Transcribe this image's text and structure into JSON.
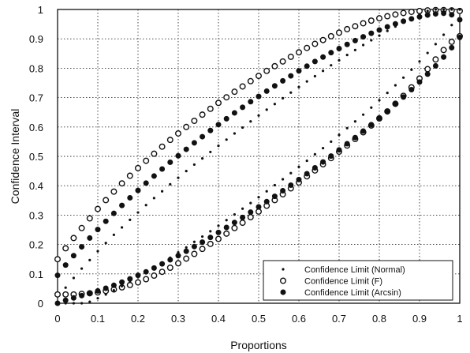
{
  "chart_data": {
    "type": "scatter",
    "title": "",
    "xlabel": "Proportions",
    "ylabel": "Confidence Interval",
    "xlim": [
      0,
      1
    ],
    "ylim": [
      0,
      1
    ],
    "x_ticks": [
      "0",
      "0.1",
      "0.2",
      "0.3",
      "0.4",
      "0.5",
      "0.6",
      "0.7",
      "0.8",
      "0.9",
      "1"
    ],
    "y_ticks": [
      "0",
      "0.1",
      "0.2",
      "0.3",
      "0.4",
      "0.5",
      "0.6",
      "0.7",
      "0.8",
      "0.9",
      "1"
    ],
    "grid": true,
    "legend_position": "bottom-right",
    "x": [
      0.0,
      0.02,
      0.04,
      0.06,
      0.08,
      0.1,
      0.12,
      0.14,
      0.16,
      0.18,
      0.2,
      0.22,
      0.24,
      0.26,
      0.28,
      0.3,
      0.32,
      0.34,
      0.36,
      0.38,
      0.4,
      0.42,
      0.44,
      0.46,
      0.48,
      0.5,
      0.52,
      0.54,
      0.56,
      0.58,
      0.6,
      0.62,
      0.64,
      0.66,
      0.68,
      0.7,
      0.72,
      0.74,
      0.76,
      0.78,
      0.8,
      0.82,
      0.84,
      0.86,
      0.88,
      0.9,
      0.92,
      0.94,
      0.96,
      0.98,
      1.0
    ],
    "series": [
      {
        "name": "Confidence Limit (Normal)",
        "marker": "dot",
        "color": "#111111",
        "lower": [
          0.0,
          0.0,
          0.0,
          0.0,
          0.005,
          0.017,
          0.03,
          0.044,
          0.058,
          0.073,
          0.089,
          0.105,
          0.121,
          0.138,
          0.155,
          0.173,
          0.19,
          0.209,
          0.227,
          0.245,
          0.264,
          0.283,
          0.302,
          0.322,
          0.341,
          0.361,
          0.381,
          0.402,
          0.422,
          0.443,
          0.464,
          0.485,
          0.507,
          0.528,
          0.55,
          0.573,
          0.596,
          0.619,
          0.642,
          0.666,
          0.691,
          0.716,
          0.742,
          0.768,
          0.795,
          0.823,
          0.852,
          0.882,
          0.914,
          0.947,
          1.0
        ],
        "upper": [
          0.0,
          0.053,
          0.086,
          0.118,
          0.147,
          0.177,
          0.205,
          0.233,
          0.258,
          0.284,
          0.309,
          0.334,
          0.358,
          0.381,
          0.405,
          0.427,
          0.45,
          0.472,
          0.493,
          0.515,
          0.536,
          0.557,
          0.578,
          0.598,
          0.619,
          0.639,
          0.659,
          0.678,
          0.698,
          0.717,
          0.736,
          0.755,
          0.773,
          0.791,
          0.81,
          0.827,
          0.845,
          0.862,
          0.879,
          0.895,
          0.911,
          0.927,
          0.942,
          0.956,
          0.97,
          0.983,
          0.995,
          1.0,
          1.0,
          1.0,
          1.0
        ]
      },
      {
        "name": "Confidence Limit (F)",
        "marker": "open-circle",
        "color": "#111111",
        "lower": [
          0.03,
          0.03,
          0.03,
          0.032,
          0.034,
          0.037,
          0.042,
          0.047,
          0.054,
          0.062,
          0.071,
          0.082,
          0.094,
          0.107,
          0.121,
          0.136,
          0.152,
          0.168,
          0.185,
          0.202,
          0.219,
          0.237,
          0.256,
          0.274,
          0.293,
          0.312,
          0.332,
          0.351,
          0.371,
          0.391,
          0.411,
          0.432,
          0.452,
          0.473,
          0.494,
          0.516,
          0.537,
          0.559,
          0.582,
          0.605,
          0.629,
          0.653,
          0.679,
          0.706,
          0.735,
          0.765,
          0.797,
          0.83,
          0.862,
          0.89,
          0.909
        ],
        "upper": [
          0.15,
          0.187,
          0.222,
          0.256,
          0.289,
          0.321,
          0.351,
          0.38,
          0.408,
          0.434,
          0.46,
          0.485,
          0.509,
          0.533,
          0.556,
          0.578,
          0.6,
          0.621,
          0.642,
          0.662,
          0.682,
          0.701,
          0.72,
          0.738,
          0.756,
          0.774,
          0.791,
          0.807,
          0.823,
          0.839,
          0.854,
          0.869,
          0.883,
          0.896,
          0.909,
          0.921,
          0.933,
          0.943,
          0.953,
          0.962,
          0.97,
          0.977,
          0.983,
          0.988,
          0.992,
          0.995,
          0.997,
          0.998,
          0.998,
          0.997,
          0.995
        ]
      },
      {
        "name": "Confidence Limit (Arcsin)",
        "marker": "filled-circle",
        "color": "#111111",
        "lower": [
          0.0,
          0.01,
          0.018,
          0.026,
          0.034,
          0.042,
          0.051,
          0.061,
          0.072,
          0.083,
          0.095,
          0.107,
          0.12,
          0.134,
          0.148,
          0.162,
          0.177,
          0.193,
          0.208,
          0.224,
          0.241,
          0.258,
          0.275,
          0.292,
          0.31,
          0.328,
          0.346,
          0.364,
          0.383,
          0.402,
          0.421,
          0.441,
          0.461,
          0.481,
          0.501,
          0.522,
          0.543,
          0.564,
          0.586,
          0.608,
          0.631,
          0.654,
          0.678,
          0.702,
          0.727,
          0.753,
          0.78,
          0.808,
          0.838,
          0.87,
          0.905
        ],
        "upper": [
          0.095,
          0.13,
          0.162,
          0.192,
          0.222,
          0.251,
          0.279,
          0.306,
          0.333,
          0.359,
          0.384,
          0.409,
          0.433,
          0.457,
          0.48,
          0.502,
          0.524,
          0.546,
          0.567,
          0.588,
          0.608,
          0.628,
          0.648,
          0.667,
          0.686,
          0.704,
          0.722,
          0.74,
          0.757,
          0.774,
          0.791,
          0.807,
          0.823,
          0.838,
          0.853,
          0.867,
          0.881,
          0.894,
          0.907,
          0.919,
          0.93,
          0.941,
          0.951,
          0.96,
          0.968,
          0.975,
          0.981,
          0.985,
          0.987,
          0.982,
          0.965
        ]
      }
    ]
  }
}
